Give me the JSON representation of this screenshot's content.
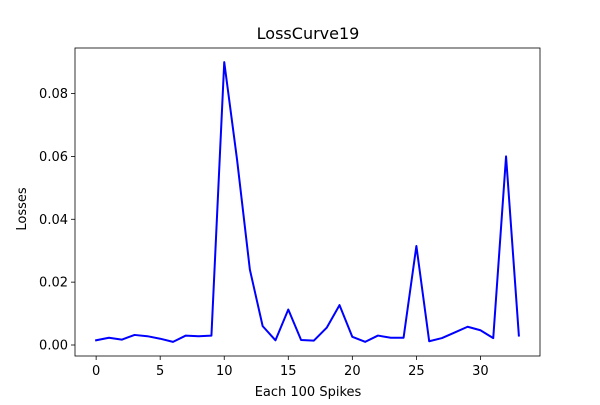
{
  "chart_data": {
    "type": "line",
    "title": "LossCurve19",
    "xlabel": "Each 100 Spikes",
    "ylabel": "Losses",
    "xlim": [
      -1.65,
      34.65
    ],
    "ylim": [
      -0.0035,
      0.0945
    ],
    "xticks": [
      0,
      5,
      10,
      15,
      20,
      25,
      30
    ],
    "xtick_labels": [
      "0",
      "5",
      "10",
      "15",
      "20",
      "25",
      "30"
    ],
    "yticks": [
      0.0,
      0.02,
      0.04,
      0.06,
      0.08
    ],
    "ytick_labels": [
      "0.00",
      "0.02",
      "0.04",
      "0.06",
      "0.08"
    ],
    "grid": false,
    "legend": "none",
    "series": [
      {
        "color": "#0000ff",
        "x": [
          0,
          1,
          2,
          3,
          4,
          5,
          6,
          7,
          8,
          9,
          10,
          11,
          12,
          13,
          14,
          15,
          16,
          17,
          18,
          19,
          20,
          21,
          22,
          23,
          24,
          25,
          26,
          27,
          28,
          29,
          30,
          31,
          32,
          33
        ],
        "values": [
          0.0015,
          0.0023,
          0.0017,
          0.0032,
          0.0028,
          0.002,
          0.001,
          0.003,
          0.0028,
          0.003,
          0.09,
          0.059,
          0.024,
          0.006,
          0.0015,
          0.0113,
          0.0016,
          0.0014,
          0.0055,
          0.0127,
          0.0026,
          0.001,
          0.003,
          0.0023,
          0.0023,
          0.0315,
          0.0012,
          0.0022,
          0.004,
          0.0058,
          0.0047,
          0.0022,
          0.06,
          0.003
        ]
      }
    ]
  }
}
